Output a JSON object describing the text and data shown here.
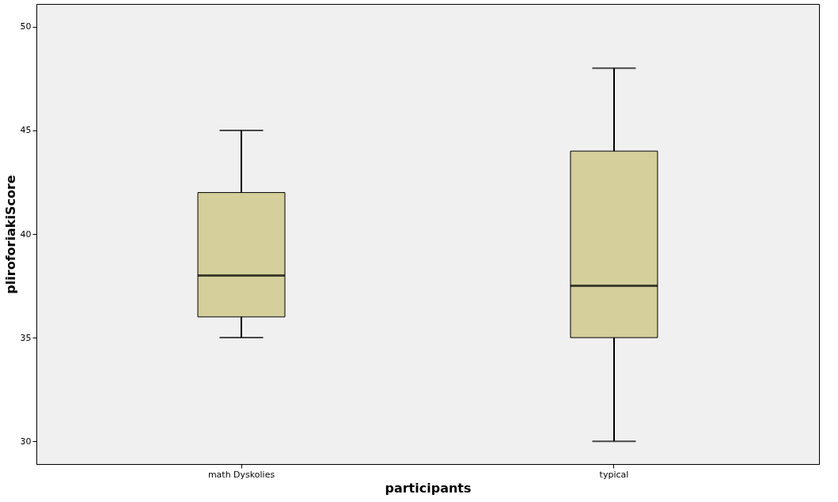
{
  "chart_data": {
    "type": "box",
    "xlabel": "participants",
    "ylabel": "pliroforiakiScore",
    "categories": [
      "math Dyskolies",
      "typical"
    ],
    "boxes": [
      {
        "low": 35,
        "q1": 36,
        "median": 38,
        "q3": 42,
        "high": 45
      },
      {
        "low": 30,
        "q1": 35,
        "median": 37.5,
        "q3": 44,
        "high": 48
      }
    ],
    "color": "#d4cf9b",
    "ylim": [
      28.9,
      51.1
    ],
    "yticks": [
      30,
      35,
      40,
      45,
      50
    ],
    "grid": false
  }
}
